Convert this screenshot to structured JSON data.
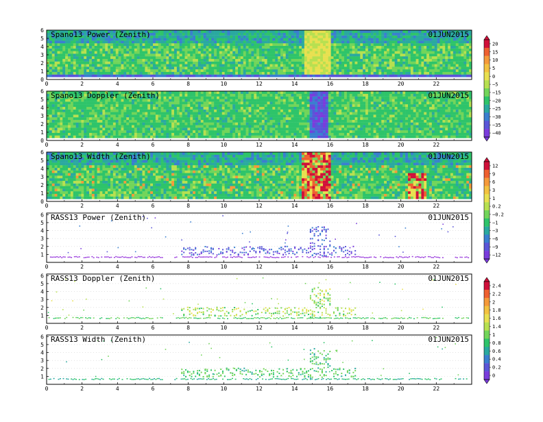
{
  "chart_data": [
    {
      "type": "heatmap",
      "title": "Spano13 Power (Zenith)",
      "date": "01JUN2015",
      "x_ticks": [
        0,
        2,
        4,
        6,
        8,
        10,
        12,
        14,
        16,
        18,
        20,
        22
      ],
      "y_ticks": [
        0,
        1,
        2,
        3,
        4,
        5,
        6
      ],
      "xlim": [
        0,
        24
      ],
      "ylim": [
        0,
        6
      ],
      "field": "power",
      "colorbar_group": 1
    },
    {
      "type": "heatmap",
      "title": "Spano13 Doppler (Zenith)",
      "date": "01JUN2015",
      "x_ticks": [
        0,
        2,
        4,
        6,
        8,
        10,
        12,
        14,
        16,
        18,
        20,
        22
      ],
      "y_ticks": [
        0,
        1,
        2,
        3,
        4,
        5,
        6
      ],
      "xlim": [
        0,
        24
      ],
      "ylim": [
        0,
        6
      ],
      "field": "doppler",
      "colorbar_group": 1
    },
    {
      "type": "heatmap",
      "title": "Spano13 Width (Zenith)",
      "date": "01JUN2015",
      "x_ticks": [
        0,
        2,
        4,
        6,
        8,
        10,
        12,
        14,
        16,
        18,
        20,
        22
      ],
      "y_ticks": [
        0,
        1,
        2,
        3,
        4,
        5,
        6
      ],
      "xlim": [
        0,
        24
      ],
      "ylim": [
        0,
        6
      ],
      "field": "width",
      "colorbar_group": 2
    },
    {
      "type": "scatter",
      "title": "RASS13 Power (Zenith)",
      "date": "01JUN2015",
      "x_ticks": [
        0,
        2,
        4,
        6,
        8,
        10,
        12,
        14,
        16,
        18,
        20,
        22
      ],
      "y_ticks": [
        1,
        2,
        3,
        4,
        5,
        6
      ],
      "xlim": [
        0,
        24
      ],
      "ylim": [
        0,
        6.2
      ],
      "field": "rass_power",
      "colorbar_group": 2
    },
    {
      "type": "scatter",
      "title": "RASS13 Doppler (Zenith)",
      "date": "01JUN2015",
      "x_ticks": [
        0,
        2,
        4,
        6,
        8,
        10,
        12,
        14,
        16,
        18,
        20,
        22
      ],
      "y_ticks": [
        1,
        2,
        3,
        4,
        5,
        6
      ],
      "xlim": [
        0,
        24
      ],
      "ylim": [
        0,
        6.2
      ],
      "field": "rass_doppler",
      "colorbar_group": 3
    },
    {
      "type": "scatter",
      "title": "RASS13 Width (Zenith)",
      "date": "01JUN2015",
      "x_ticks": [
        0,
        2,
        4,
        6,
        8,
        10,
        12,
        14,
        16,
        18,
        20,
        22
      ],
      "y_ticks": [
        1,
        2,
        3,
        4,
        5,
        6
      ],
      "xlim": [
        0,
        24
      ],
      "ylim": [
        0,
        6.2
      ],
      "field": "rass_width",
      "colorbar_group": 3
    }
  ],
  "colorbars": [
    {
      "labels": [
        "20",
        "15",
        "10",
        "5",
        "0",
        "−5",
        "−15",
        "−20",
        "−25",
        "−30",
        "−35",
        "−40"
      ],
      "colors": [
        "#d0103a",
        "#ee6030",
        "#f59a3a",
        "#f3c240",
        "#e8e050",
        "#b7e050",
        "#72d55a",
        "#2ec46a",
        "#2aa9a0",
        "#3a7fd0",
        "#5a55d8",
        "#7a3cdc"
      ]
    },
    {
      "labels": [
        "12",
        "9",
        "6",
        "3",
        "1",
        "0.2",
        "−0.2",
        "−1",
        "−3",
        "−6",
        "−9",
        "−12"
      ],
      "colors": [
        "#d0103a",
        "#ee6030",
        "#f59a3a",
        "#f3c240",
        "#e8e050",
        "#b7e050",
        "#72d55a",
        "#2ec46a",
        "#2aa9a0",
        "#3a7fd0",
        "#5a55d8",
        "#7a3cdc"
      ]
    },
    {
      "labels": [
        "2.4",
        "2.2",
        "2",
        "1.8",
        "1.6",
        "1.4",
        "1",
        "0.8",
        "0.6",
        "0.4",
        "0.2",
        "0"
      ],
      "colors": [
        "#d0103a",
        "#ee6030",
        "#f59a3a",
        "#f3c240",
        "#e8e050",
        "#b7e050",
        "#72d55a",
        "#2ec46a",
        "#2aa9a0",
        "#3a7fd0",
        "#5a55d8",
        "#7a3cdc"
      ]
    }
  ]
}
